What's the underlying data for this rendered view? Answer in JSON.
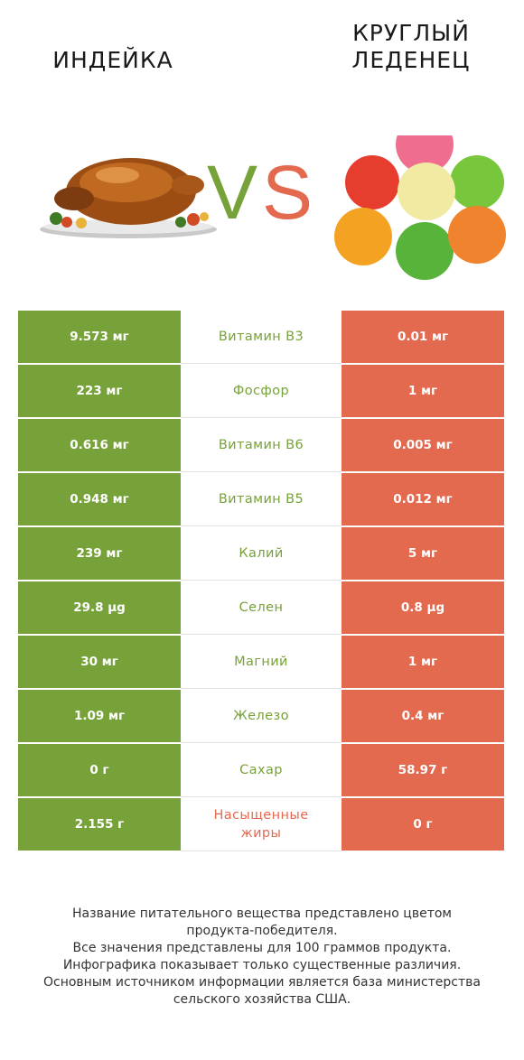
{
  "title_left": "ИНДЕЙКА",
  "title_right": [
    "КРУГЛЫЙ",
    "ЛЕДЕНЕЦ"
  ],
  "vs_letters": [
    "V",
    "S"
  ],
  "colors": {
    "left": "#77a23a",
    "right": "#e3694f"
  },
  "icons": {
    "left": "roast-turkey",
    "right": "gumdrop-candies"
  },
  "chart_data": {
    "type": "table",
    "columns": [
      "ИНДЕЙКА",
      "КРУГЛЫЙ ЛЕДЕНЕЦ"
    ],
    "rows": [
      {
        "nutrient": "Витамин B3",
        "left": "9.573 мг",
        "right": "0.01 мг",
        "winner": "left"
      },
      {
        "nutrient": "Фосфор",
        "left": "223 мг",
        "right": "1 мг",
        "winner": "left"
      },
      {
        "nutrient": "Витамин B6",
        "left": "0.616 мг",
        "right": "0.005 мг",
        "winner": "left"
      },
      {
        "nutrient": "Витамин B5",
        "left": "0.948 мг",
        "right": "0.012 мг",
        "winner": "left"
      },
      {
        "nutrient": "Калий",
        "left": "239 мг",
        "right": "5 мг",
        "winner": "left"
      },
      {
        "nutrient": "Селен",
        "left": "29.8 µg",
        "right": "0.8 µg",
        "winner": "left"
      },
      {
        "nutrient": "Магний",
        "left": "30 мг",
        "right": "1 мг",
        "winner": "left"
      },
      {
        "nutrient": "Железо",
        "left": "1.09 мг",
        "right": "0.4 мг",
        "winner": "left"
      },
      {
        "nutrient": "Сахар",
        "left": "0 г",
        "right": "58.97 г",
        "winner": "left"
      },
      {
        "nutrient": [
          "Насыщенные",
          "жиры"
        ],
        "left": "2.155 г",
        "right": "0 г",
        "winner": "right"
      }
    ]
  },
  "footer": [
    "Название питательного вещества представлено цветом",
    "продукта-победителя.",
    "Все значения представлены для 100 граммов продукта.",
    "Инфографика показывает только существенные различия.",
    "Основным источником информации является база министерства",
    "сельского хозяйства США."
  ]
}
